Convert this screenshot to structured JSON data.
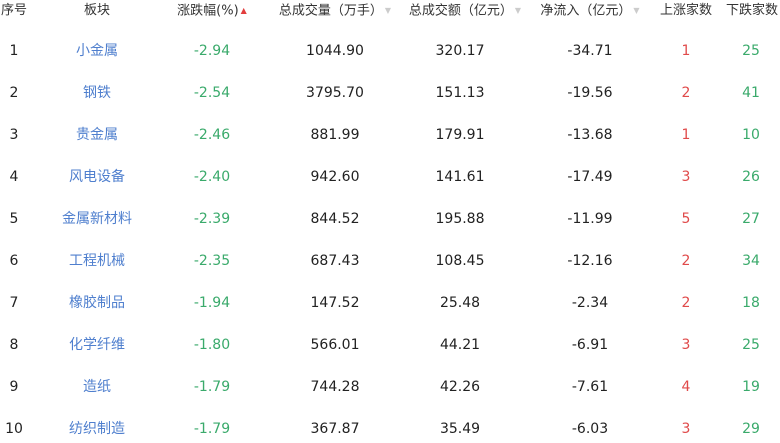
{
  "header": {
    "index": "序号",
    "sector": "板块",
    "change_pct": "涨跌幅(%)",
    "volume": "总成交量（万手）",
    "amount": "总成交额（亿元）",
    "net_inflow": "净流入（亿元）",
    "up_count": "上涨家数",
    "down_count": "下跌家数",
    "sort_icons": {
      "change_pct": "sort-asc-active",
      "volume": "sort-inactive",
      "amount": "sort-inactive",
      "net_inflow": "sort-inactive"
    }
  },
  "colors": {
    "name": "#4f7fce",
    "negative": "#3aaa6b",
    "up_count": "#e04a4a",
    "down_count": "#3aaa6b",
    "sort_active": "#e23d3d"
  },
  "rows": [
    {
      "index": "1",
      "sector": "小金属",
      "change_pct": "-2.94",
      "volume": "1044.90",
      "amount": "320.17",
      "net_inflow": "-34.71",
      "up": "1",
      "down": "25"
    },
    {
      "index": "2",
      "sector": "钢铁",
      "change_pct": "-2.54",
      "volume": "3795.70",
      "amount": "151.13",
      "net_inflow": "-19.56",
      "up": "2",
      "down": "41"
    },
    {
      "index": "3",
      "sector": "贵金属",
      "change_pct": "-2.46",
      "volume": "881.99",
      "amount": "179.91",
      "net_inflow": "-13.68",
      "up": "1",
      "down": "10"
    },
    {
      "index": "4",
      "sector": "风电设备",
      "change_pct": "-2.40",
      "volume": "942.60",
      "amount": "141.61",
      "net_inflow": "-17.49",
      "up": "3",
      "down": "26"
    },
    {
      "index": "5",
      "sector": "金属新材料",
      "change_pct": "-2.39",
      "volume": "844.52",
      "amount": "195.88",
      "net_inflow": "-11.99",
      "up": "5",
      "down": "27"
    },
    {
      "index": "6",
      "sector": "工程机械",
      "change_pct": "-2.35",
      "volume": "687.43",
      "amount": "108.45",
      "net_inflow": "-12.16",
      "up": "2",
      "down": "34"
    },
    {
      "index": "7",
      "sector": "橡胶制品",
      "change_pct": "-1.94",
      "volume": "147.52",
      "amount": "25.48",
      "net_inflow": "-2.34",
      "up": "2",
      "down": "18"
    },
    {
      "index": "8",
      "sector": "化学纤维",
      "change_pct": "-1.80",
      "volume": "566.01",
      "amount": "44.21",
      "net_inflow": "-6.91",
      "up": "3",
      "down": "25"
    },
    {
      "index": "9",
      "sector": "造纸",
      "change_pct": "-1.79",
      "volume": "744.28",
      "amount": "42.26",
      "net_inflow": "-7.61",
      "up": "4",
      "down": "19"
    },
    {
      "index": "10",
      "sector": "纺织制造",
      "change_pct": "-1.79",
      "volume": "367.87",
      "amount": "35.49",
      "net_inflow": "-6.03",
      "up": "3",
      "down": "29"
    }
  ]
}
